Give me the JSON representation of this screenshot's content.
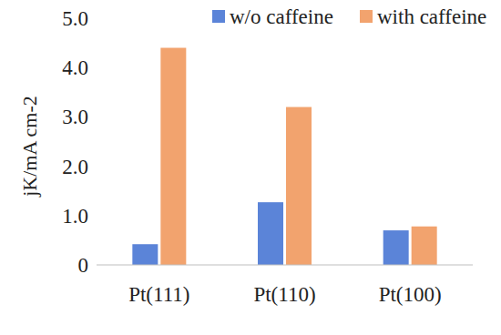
{
  "chart_data": {
    "type": "bar",
    "y_label": "jK/mA cm-2",
    "categories": [
      "Pt(111)",
      "Pt(110)",
      "Pt(100)"
    ],
    "series": [
      {
        "name": "w/o caffeine",
        "color": "#5b84d8",
        "values": [
          0.42,
          1.27,
          0.7
        ]
      },
      {
        "name": "with caffeine",
        "color": "#f2a36e",
        "values": [
          4.4,
          3.2,
          0.78
        ]
      }
    ],
    "ylim": [
      0,
      5
    ],
    "yticks": [
      0,
      {
        "value": 1,
        "label": "1.0"
      },
      {
        "value": 2,
        "label": "2.0"
      },
      {
        "value": 3,
        "label": "3.0"
      },
      {
        "value": 4,
        "label": "4.0"
      },
      {
        "value": 5,
        "label": "5.0"
      }
    ],
    "grid": false,
    "legend": "top"
  }
}
